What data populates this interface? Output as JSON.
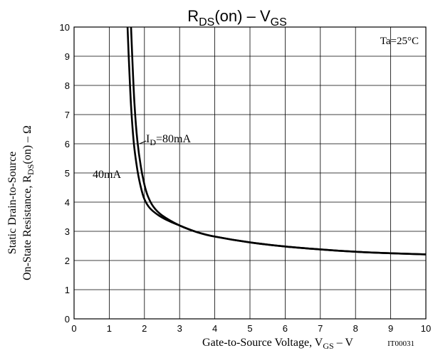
{
  "chart_data": {
    "type": "line",
    "title_main": "R",
    "title_sub": "DS",
    "title_tail": "(on) – V",
    "title_sub2": "GS",
    "xlabel_main": "Gate-to-Source Voltage, V",
    "xlabel_sub": "GS",
    "xlabel_tail": "  –  V",
    "ylabel_line1": "Static Drain-to-Source",
    "ylabel_line2_main": "On-State Resistance, R",
    "ylabel_line2_sub": "DS",
    "ylabel_line2_tail": "(on)  –  Ω",
    "condition": "Ta=25°C",
    "figure_code": "IT00031",
    "x_ticks": [
      "0",
      "1",
      "2",
      "3",
      "4",
      "5",
      "6",
      "7",
      "8",
      "9",
      "10"
    ],
    "y_ticks": [
      "0",
      "1",
      "2",
      "3",
      "4",
      "5",
      "6",
      "7",
      "8",
      "9",
      "10"
    ],
    "xlim": [
      0,
      10
    ],
    "ylim": [
      0,
      10
    ],
    "grid": true,
    "series": [
      {
        "name": "I_D=80mA",
        "label_main": "I",
        "label_sub": "D",
        "label_tail": "=80mA",
        "x": [
          1.62,
          1.66,
          1.72,
          1.8,
          1.9,
          2.0,
          2.1,
          2.25,
          2.5,
          3.0,
          3.5,
          4.0,
          5.0,
          6.0,
          7.0,
          8.0,
          9.0,
          10.0
        ],
        "y": [
          10.0,
          8.8,
          7.3,
          6.1,
          5.2,
          4.6,
          4.2,
          3.85,
          3.55,
          3.2,
          2.97,
          2.82,
          2.62,
          2.48,
          2.38,
          2.3,
          2.25,
          2.21
        ]
      },
      {
        "name": "40mA",
        "label_main": "40mA",
        "x": [
          1.52,
          1.56,
          1.62,
          1.7,
          1.8,
          1.9,
          2.0,
          2.15,
          2.4,
          2.7,
          3.0,
          3.5,
          4.0,
          5.0,
          6.0,
          7.0,
          8.0,
          9.0,
          10.0
        ],
        "y": [
          10.0,
          8.8,
          7.3,
          6.0,
          5.1,
          4.5,
          4.1,
          3.8,
          3.55,
          3.35,
          3.2,
          2.97,
          2.82,
          2.62,
          2.48,
          2.38,
          2.3,
          2.25,
          2.21
        ]
      }
    ]
  }
}
